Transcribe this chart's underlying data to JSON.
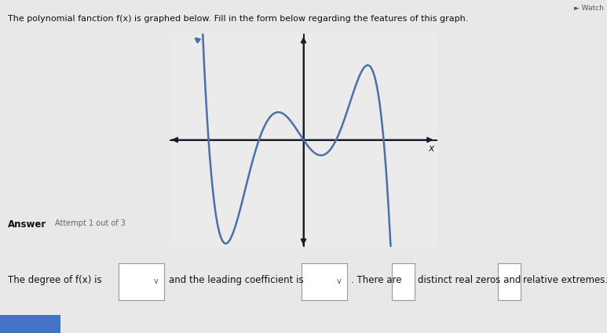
{
  "title": "The polynomial fanction f(x) is graphed below. Fill in the form below regarding the features of this graph.",
  "answer_label": "Answer",
  "attempt_label": "Attempt 1 out of 3",
  "bottom_text1": "The degree of f(x) is",
  "bottom_text2": "and the leading coefficient is",
  "bottom_text3": ". There are",
  "bottom_text4": "distinct real zeros and",
  "bottom_text5": "relative extremes.",
  "curve_color": "#4B6FA8",
  "axis_color": "#1a1a2e",
  "bg_color": "#e8e8e8",
  "graph_bg": "#ebebeb",
  "xlim": [
    -4.5,
    4.5
  ],
  "ylim": [
    -4.5,
    4.5
  ],
  "arrow_size": 10,
  "curve_lw": 1.8,
  "blue_bar_color": "#4472C4"
}
